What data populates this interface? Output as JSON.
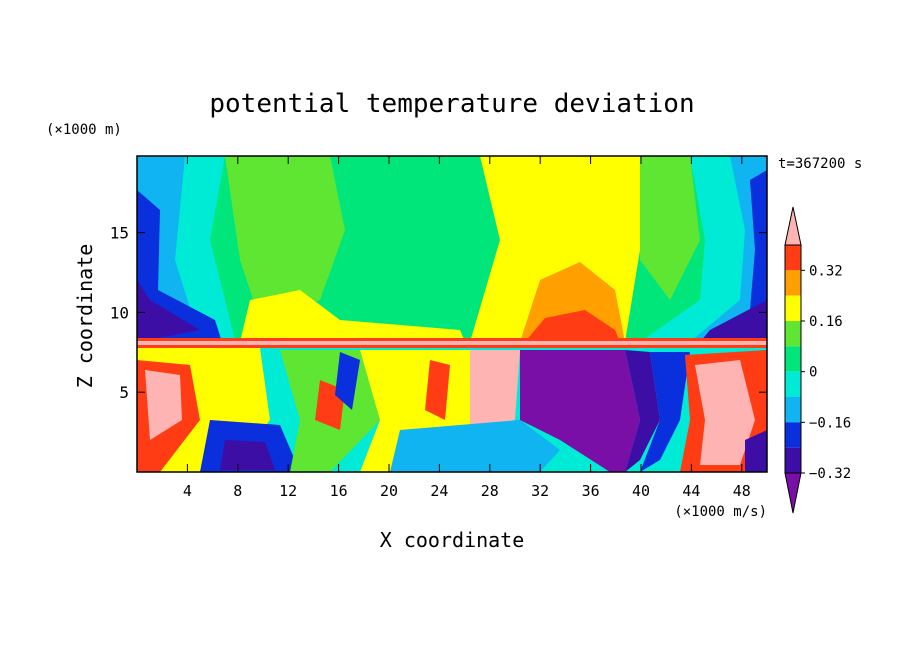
{
  "chart_data": {
    "type": "heatmap",
    "title": "potential temperature deviation",
    "time_label": "t=367200 s",
    "xlabel": "X coordinate",
    "ylabel": "Z coordinate",
    "x_unit": "(×1000 m/s)",
    "y_unit": "(×1000 m)",
    "xlim": [
      0,
      50
    ],
    "ylim": [
      0,
      19.8
    ],
    "x_ticks": [
      4,
      8,
      12,
      16,
      20,
      24,
      28,
      32,
      36,
      40,
      44,
      48
    ],
    "y_ticks": [
      5,
      10,
      15
    ],
    "colorbar": {
      "levels": [
        -0.4,
        -0.32,
        -0.24,
        -0.16,
        -0.08,
        0,
        0.08,
        0.16,
        0.24,
        0.32,
        0.4
      ],
      "tick_labels": [
        "0.32",
        "0.16",
        "0",
        "−0.16",
        "−0.32"
      ],
      "tick_values": [
        0.32,
        0.16,
        0,
        -0.16,
        -0.32
      ],
      "colors": [
        "#7a0fa8",
        "#3c0ea6",
        "#0a2fdc",
        "#0fb4f0",
        "#00ebd6",
        "#00e67a",
        "#5fe632",
        "#ffff00",
        "#ffa000",
        "#ff3c14",
        "#ffb4b4"
      ],
      "extend": "both"
    }
  }
}
